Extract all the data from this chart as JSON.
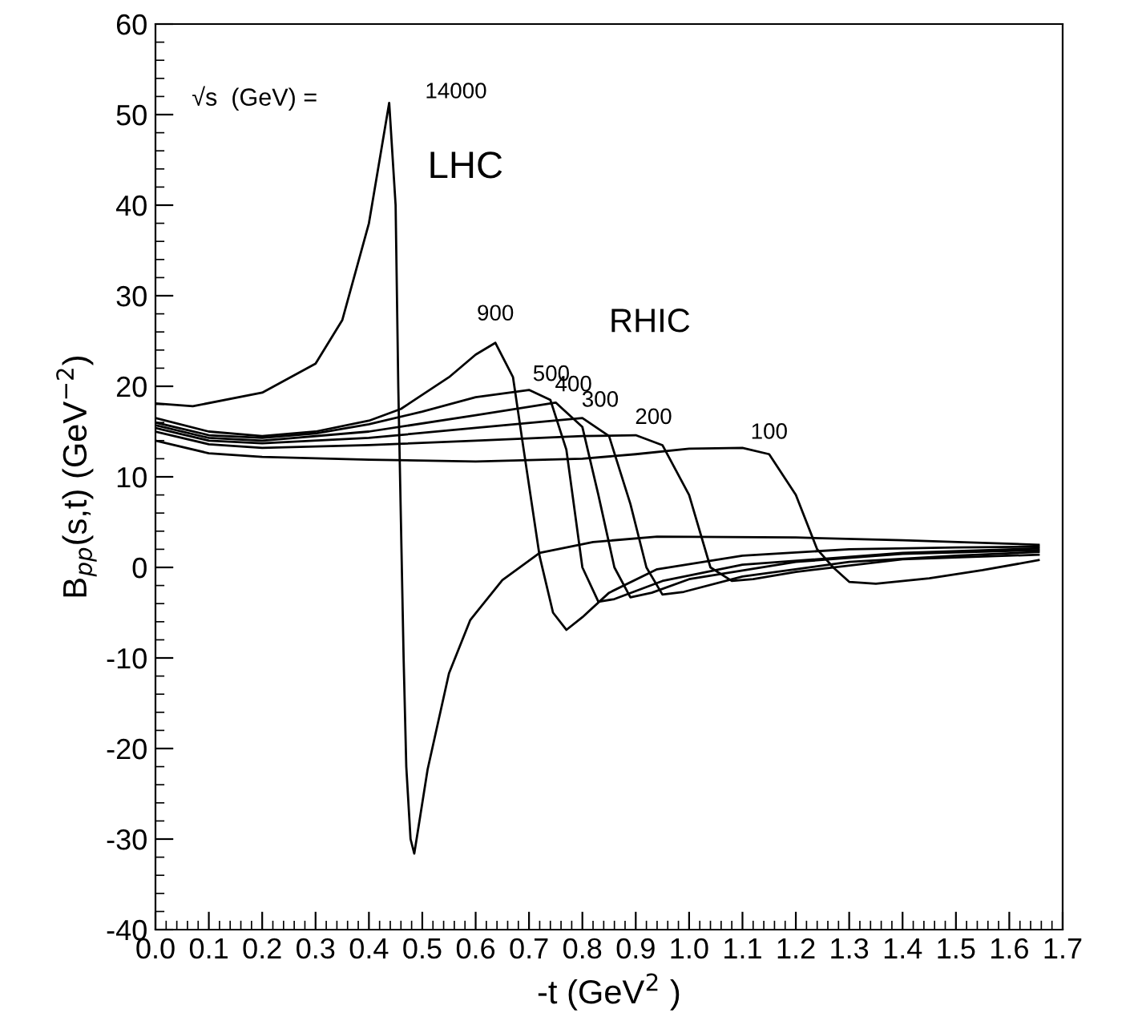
{
  "chart_data": {
    "type": "line",
    "xlabel": "-t (GeV$^{2}$ )",
    "ylabel": "B$_{pp}$(s,t) (GeV$^{−2}$)",
    "annotations": [
      "√s  (GeV) =",
      "LHC",
      "RHIC"
    ],
    "xlim": [
      0,
      1.7
    ],
    "ylim": [
      -40,
      60
    ],
    "xticks": [
      {
        "value": 0,
        "label": "0.0"
      },
      {
        "value": 0.1,
        "label": "0.1"
      },
      {
        "value": 0.2,
        "label": "0.2"
      },
      {
        "value": 0.3,
        "label": "0.3"
      },
      {
        "value": 0.4,
        "label": "0.4"
      },
      {
        "value": 0.5,
        "label": "0.5"
      },
      {
        "value": 0.6,
        "label": "0.6"
      },
      {
        "value": 0.7,
        "label": "0.7"
      },
      {
        "value": 0.8,
        "label": "0.8"
      },
      {
        "value": 0.9,
        "label": "0.9"
      },
      {
        "value": 1.0,
        "label": "1.0"
      },
      {
        "value": 1.1,
        "label": "1.1"
      },
      {
        "value": 1.2,
        "label": "1.2"
      },
      {
        "value": 1.3,
        "label": "1.3"
      },
      {
        "value": 1.4,
        "label": "1.4"
      },
      {
        "value": 1.5,
        "label": "1.5"
      },
      {
        "value": 1.6,
        "label": "1.6"
      },
      {
        "value": 1.7,
        "label": "1.7"
      }
    ],
    "yticks": [
      -40,
      -30,
      -20,
      -10,
      0,
      10,
      20,
      30,
      40,
      50,
      60
    ],
    "grid": false,
    "legend": false,
    "marker": "none",
    "line_style": "solid",
    "series": [
      {
        "name": "14000",
        "color": "#000000",
        "x": [
          0,
          0.07,
          0.2,
          0.3,
          0.35,
          0.4,
          0.42,
          0.438,
          0.45,
          0.455,
          0.46,
          0.465,
          0.47,
          0.478,
          0.485,
          0.492,
          0.51,
          0.55,
          0.59,
          0.65,
          0.72,
          0.82,
          0.94,
          1.2,
          1.4,
          1.655
        ],
        "values": [
          18.1,
          17.8,
          19.3,
          22.5,
          27.3,
          38,
          45,
          51.3,
          40,
          20,
          5,
          -10,
          -22,
          -30,
          -31.6,
          -29,
          -22.3,
          -11.7,
          -5.8,
          -1.4,
          1.6,
          2.8,
          3.4,
          3.3,
          3,
          2.5
        ]
      },
      {
        "name": "900",
        "color": "#000000",
        "x": [
          0,
          0.1,
          0.2,
          0.3,
          0.4,
          0.46,
          0.55,
          0.6,
          0.637,
          0.67,
          0.69,
          0.72,
          0.745,
          0.77,
          0.8,
          0.85,
          0.94,
          1.1,
          1.3,
          1.5,
          1.655
        ],
        "values": [
          16.5,
          15,
          14.5,
          15,
          16.2,
          17.5,
          21,
          23.5,
          24.8,
          21,
          13,
          1.2,
          -5,
          -6.9,
          -5.5,
          -2.8,
          -0.2,
          1.3,
          2,
          2.2,
          2.3
        ]
      },
      {
        "name": "500",
        "color": "#000000",
        "x": [
          0,
          0.1,
          0.2,
          0.3,
          0.4,
          0.5,
          0.6,
          0.7,
          0.74,
          0.77,
          0.8,
          0.83,
          0.86,
          0.95,
          1.1,
          1.4,
          1.655
        ],
        "values": [
          16,
          14.6,
          14.3,
          14.8,
          15.8,
          17.2,
          18.8,
          19.6,
          18.5,
          13,
          0,
          -3.8,
          -3.5,
          -1.5,
          0.3,
          1.6,
          2.1
        ]
      },
      {
        "name": "400",
        "color": "#000000",
        "x": [
          0,
          0.1,
          0.2,
          0.4,
          0.6,
          0.75,
          0.8,
          0.83,
          0.86,
          0.89,
          0.93,
          1.0,
          1.2,
          1.4,
          1.655
        ],
        "values": [
          15.7,
          14.3,
          14,
          15,
          16.8,
          18.2,
          15.5,
          8,
          0,
          -3.3,
          -2.8,
          -1.3,
          0.6,
          1.5,
          1.9
        ]
      },
      {
        "name": "300",
        "color": "#000000",
        "x": [
          0,
          0.1,
          0.2,
          0.4,
          0.6,
          0.8,
          0.85,
          0.89,
          0.92,
          0.95,
          0.99,
          1.1,
          1.3,
          1.5,
          1.655
        ],
        "values": [
          15.4,
          14,
          13.7,
          14.3,
          15.4,
          16.5,
          14.5,
          7,
          0,
          -3,
          -2.7,
          -1,
          0.6,
          1.3,
          1.7
        ]
      },
      {
        "name": "200",
        "color": "#000000",
        "x": [
          0,
          0.1,
          0.2,
          0.4,
          0.6,
          0.8,
          0.9,
          0.95,
          1.0,
          1.04,
          1.08,
          1.12,
          1.2,
          1.4,
          1.655
        ],
        "values": [
          15,
          13.6,
          13.2,
          13.5,
          14,
          14.5,
          14.6,
          13.5,
          8,
          0,
          -1.5,
          -1.3,
          -0.5,
          0.9,
          1.4
        ]
      },
      {
        "name": "100",
        "color": "#000000",
        "x": [
          0,
          0.1,
          0.2,
          0.4,
          0.6,
          0.8,
          0.9,
          1.0,
          1.1,
          1.15,
          1.2,
          1.24,
          1.27,
          1.3,
          1.35,
          1.45,
          1.55,
          1.655
        ],
        "values": [
          14,
          12.6,
          12.2,
          11.9,
          11.7,
          12,
          12.5,
          13.1,
          13.2,
          12.5,
          8,
          2,
          0,
          -1.6,
          -1.8,
          -1.2,
          -0.3,
          0.8
        ]
      }
    ]
  }
}
